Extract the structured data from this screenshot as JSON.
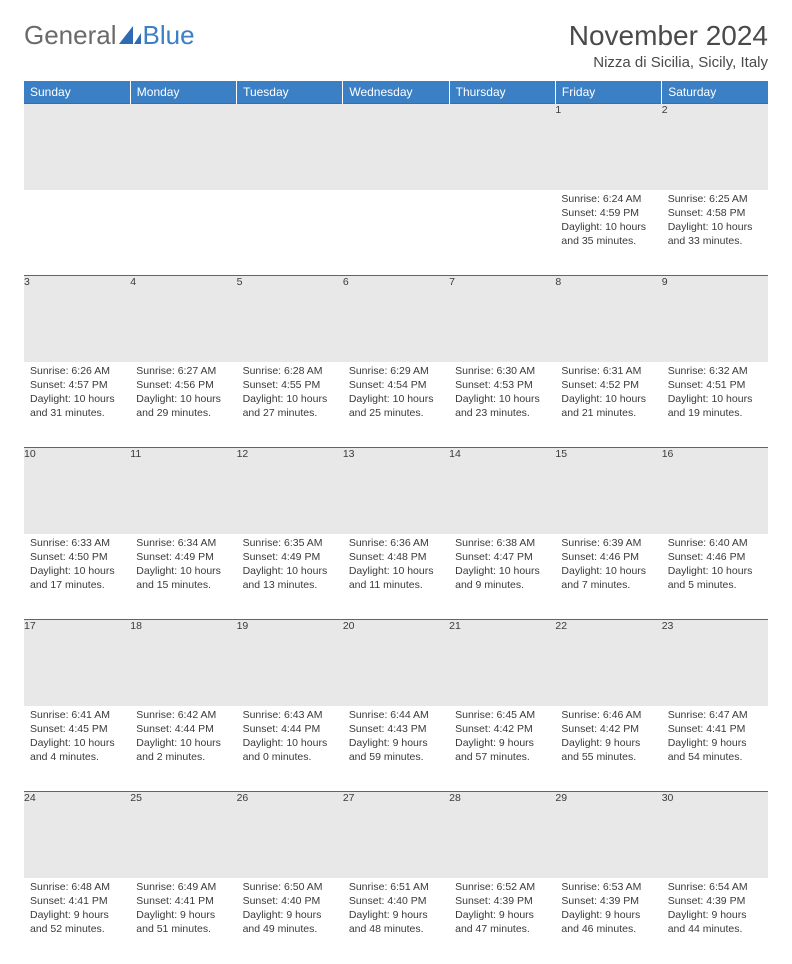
{
  "brand": {
    "part1": "General",
    "part2": "Blue"
  },
  "title": "November 2024",
  "location": "Nizza di Sicilia, Sicily, Italy",
  "colors": {
    "header_bg": "#3b7fc4",
    "daynum_bg": "#e8e8e8",
    "rule": "#4a6a8a",
    "text": "#3a3a3a"
  },
  "weekdays": [
    "Sunday",
    "Monday",
    "Tuesday",
    "Wednesday",
    "Thursday",
    "Friday",
    "Saturday"
  ],
  "weeks": [
    [
      null,
      null,
      null,
      null,
      null,
      {
        "n": "1",
        "sr": "6:24 AM",
        "ss": "4:59 PM",
        "dl": "10 hours and 35 minutes."
      },
      {
        "n": "2",
        "sr": "6:25 AM",
        "ss": "4:58 PM",
        "dl": "10 hours and 33 minutes."
      }
    ],
    [
      {
        "n": "3",
        "sr": "6:26 AM",
        "ss": "4:57 PM",
        "dl": "10 hours and 31 minutes."
      },
      {
        "n": "4",
        "sr": "6:27 AM",
        "ss": "4:56 PM",
        "dl": "10 hours and 29 minutes."
      },
      {
        "n": "5",
        "sr": "6:28 AM",
        "ss": "4:55 PM",
        "dl": "10 hours and 27 minutes."
      },
      {
        "n": "6",
        "sr": "6:29 AM",
        "ss": "4:54 PM",
        "dl": "10 hours and 25 minutes."
      },
      {
        "n": "7",
        "sr": "6:30 AM",
        "ss": "4:53 PM",
        "dl": "10 hours and 23 minutes."
      },
      {
        "n": "8",
        "sr": "6:31 AM",
        "ss": "4:52 PM",
        "dl": "10 hours and 21 minutes."
      },
      {
        "n": "9",
        "sr": "6:32 AM",
        "ss": "4:51 PM",
        "dl": "10 hours and 19 minutes."
      }
    ],
    [
      {
        "n": "10",
        "sr": "6:33 AM",
        "ss": "4:50 PM",
        "dl": "10 hours and 17 minutes."
      },
      {
        "n": "11",
        "sr": "6:34 AM",
        "ss": "4:49 PM",
        "dl": "10 hours and 15 minutes."
      },
      {
        "n": "12",
        "sr": "6:35 AM",
        "ss": "4:49 PM",
        "dl": "10 hours and 13 minutes."
      },
      {
        "n": "13",
        "sr": "6:36 AM",
        "ss": "4:48 PM",
        "dl": "10 hours and 11 minutes."
      },
      {
        "n": "14",
        "sr": "6:38 AM",
        "ss": "4:47 PM",
        "dl": "10 hours and 9 minutes."
      },
      {
        "n": "15",
        "sr": "6:39 AM",
        "ss": "4:46 PM",
        "dl": "10 hours and 7 minutes."
      },
      {
        "n": "16",
        "sr": "6:40 AM",
        "ss": "4:46 PM",
        "dl": "10 hours and 5 minutes."
      }
    ],
    [
      {
        "n": "17",
        "sr": "6:41 AM",
        "ss": "4:45 PM",
        "dl": "10 hours and 4 minutes."
      },
      {
        "n": "18",
        "sr": "6:42 AM",
        "ss": "4:44 PM",
        "dl": "10 hours and 2 minutes."
      },
      {
        "n": "19",
        "sr": "6:43 AM",
        "ss": "4:44 PM",
        "dl": "10 hours and 0 minutes."
      },
      {
        "n": "20",
        "sr": "6:44 AM",
        "ss": "4:43 PM",
        "dl": "9 hours and 59 minutes."
      },
      {
        "n": "21",
        "sr": "6:45 AM",
        "ss": "4:42 PM",
        "dl": "9 hours and 57 minutes."
      },
      {
        "n": "22",
        "sr": "6:46 AM",
        "ss": "4:42 PM",
        "dl": "9 hours and 55 minutes."
      },
      {
        "n": "23",
        "sr": "6:47 AM",
        "ss": "4:41 PM",
        "dl": "9 hours and 54 minutes."
      }
    ],
    [
      {
        "n": "24",
        "sr": "6:48 AM",
        "ss": "4:41 PM",
        "dl": "9 hours and 52 minutes."
      },
      {
        "n": "25",
        "sr": "6:49 AM",
        "ss": "4:41 PM",
        "dl": "9 hours and 51 minutes."
      },
      {
        "n": "26",
        "sr": "6:50 AM",
        "ss": "4:40 PM",
        "dl": "9 hours and 49 minutes."
      },
      {
        "n": "27",
        "sr": "6:51 AM",
        "ss": "4:40 PM",
        "dl": "9 hours and 48 minutes."
      },
      {
        "n": "28",
        "sr": "6:52 AM",
        "ss": "4:39 PM",
        "dl": "9 hours and 47 minutes."
      },
      {
        "n": "29",
        "sr": "6:53 AM",
        "ss": "4:39 PM",
        "dl": "9 hours and 46 minutes."
      },
      {
        "n": "30",
        "sr": "6:54 AM",
        "ss": "4:39 PM",
        "dl": "9 hours and 44 minutes."
      }
    ]
  ],
  "labels": {
    "sunrise": "Sunrise:",
    "sunset": "Sunset:",
    "daylight": "Daylight:"
  }
}
